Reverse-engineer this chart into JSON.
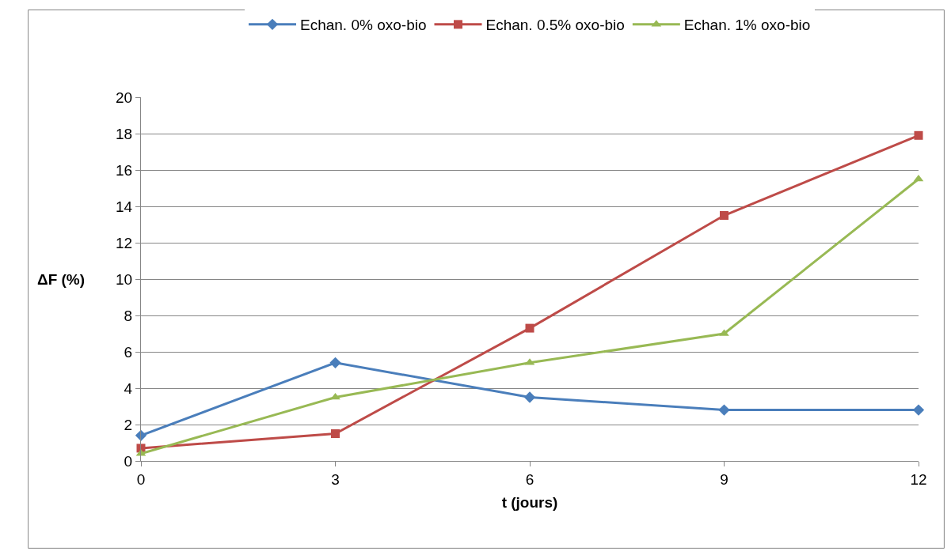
{
  "chart_data": {
    "type": "line",
    "xlabel": "t (jours)",
    "ylabel": "ΔF (%)",
    "x": [
      0,
      3,
      6,
      9,
      12
    ],
    "series": [
      {
        "name": "Echan. 0% oxo-bio",
        "color": "#4a7ebb",
        "marker": "diamond",
        "values": [
          1.4,
          5.4,
          3.5,
          2.8,
          2.8
        ]
      },
      {
        "name": "Echan. 0.5% oxo-bio",
        "color": "#be4b48",
        "marker": "square",
        "values": [
          0.7,
          1.5,
          7.3,
          13.5,
          17.9
        ]
      },
      {
        "name": "Echan. 1% oxo-bio",
        "color": "#98b954",
        "marker": "triangle",
        "values": [
          0.4,
          3.5,
          5.4,
          7.0,
          15.5
        ]
      }
    ],
    "xlim": [
      0,
      12
    ],
    "xticks": [
      0,
      3,
      6,
      9,
      12
    ],
    "ylim": [
      0,
      20
    ],
    "yticks": [
      0,
      2,
      4,
      6,
      8,
      10,
      12,
      14,
      16,
      18,
      20
    ],
    "grid": "y",
    "legend": "top",
    "line_style": "solid"
  }
}
